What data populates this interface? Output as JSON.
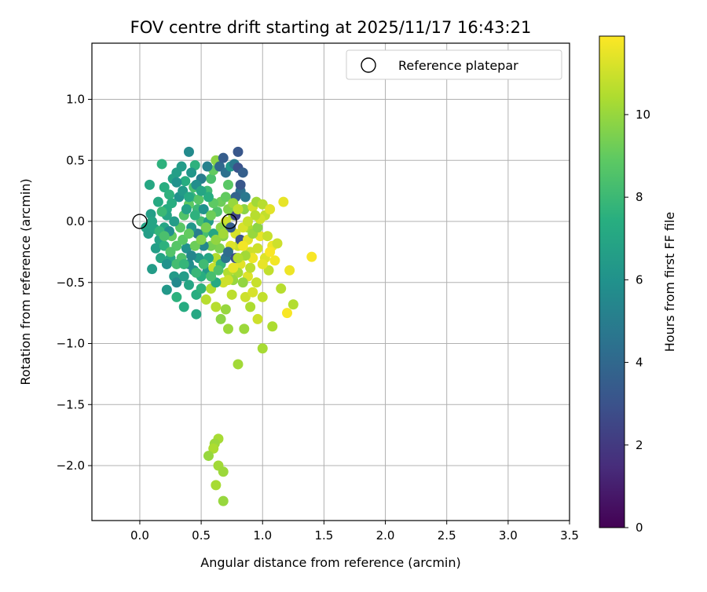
{
  "chart_data": {
    "type": "scatter",
    "title": "FOV centre drift starting at 2025/11/17 16:43:21",
    "xlabel": "Angular distance from reference (arcmin)",
    "ylabel": "Rotation from reference (arcmin)",
    "xlim": [
      -0.39,
      3.5
    ],
    "ylim": [
      -2.45,
      1.46
    ],
    "xticks": [
      0.0,
      0.5,
      1.0,
      1.5,
      2.0,
      2.5,
      3.0,
      3.5
    ],
    "xtick_labels": [
      "0.0",
      "0.5",
      "1.0",
      "1.5",
      "2.0",
      "2.5",
      "3.0",
      "3.5"
    ],
    "yticks": [
      -2.0,
      -1.5,
      -1.0,
      -0.5,
      0.0,
      0.5,
      1.0
    ],
    "ytick_labels": [
      "−2.0",
      "−1.5",
      "−1.0",
      "−0.5",
      "0.0",
      "0.5",
      "1.0"
    ],
    "grid": true,
    "legend": {
      "position": "upper-right",
      "entries": [
        "Reference platepar"
      ]
    },
    "reference_points": [
      [
        0.0,
        0.0
      ],
      [
        0.73,
        0.0
      ]
    ],
    "colorbar": {
      "label": "Hours from first FF file",
      "range": [
        0,
        11.9
      ],
      "ticks": [
        0,
        2,
        4,
        6,
        8,
        10
      ],
      "tick_labels": [
        "0",
        "2",
        "4",
        "6",
        "8",
        "10"
      ],
      "colormap": "viridis"
    },
    "points": [
      [
        0.05,
        -0.05,
        6.8
      ],
      [
        0.07,
        -0.1,
        6.6
      ],
      [
        0.09,
        0.06,
        6.6
      ],
      [
        0.08,
        0.3,
        7.1
      ],
      [
        0.12,
        -0.06,
        6.9
      ],
      [
        0.15,
        0.16,
        7.2
      ],
      [
        0.1,
        0.0,
        6.9
      ],
      [
        0.13,
        -0.22,
        6.6
      ],
      [
        0.18,
        0.47,
        7.6
      ],
      [
        0.2,
        0.28,
        7.4
      ],
      [
        0.22,
        -0.56,
        6.3
      ],
      [
        0.25,
        -0.3,
        7.0
      ],
      [
        0.28,
        -0.45,
        6.4
      ],
      [
        0.3,
        -0.62,
        7.6
      ],
      [
        0.36,
        -0.7,
        7.3
      ],
      [
        0.4,
        -0.52,
        7.0
      ],
      [
        0.46,
        -0.76,
        7.1
      ],
      [
        0.46,
        -0.6,
        7.4
      ],
      [
        0.54,
        -0.64,
        10.6
      ],
      [
        0.5,
        -0.55,
        7.6
      ],
      [
        0.1,
        -0.39,
        6.5
      ],
      [
        0.16,
        -0.15,
        6.8
      ],
      [
        0.2,
        -0.05,
        7.0
      ],
      [
        0.22,
        0.1,
        7.3
      ],
      [
        0.24,
        0.22,
        7.6
      ],
      [
        0.27,
        0.35,
        6.8
      ],
      [
        0.3,
        0.4,
        6.6
      ],
      [
        0.34,
        0.45,
        6.5
      ],
      [
        0.37,
        0.33,
        7.4
      ],
      [
        0.4,
        0.57,
        5.6
      ],
      [
        0.45,
        0.46,
        7.6
      ],
      [
        0.42,
        0.2,
        7.8
      ],
      [
        0.47,
        0.1,
        8.0
      ],
      [
        0.5,
        0.0,
        8.2
      ],
      [
        0.52,
        -0.1,
        8.3
      ],
      [
        0.55,
        0.25,
        8.1
      ],
      [
        0.58,
        0.35,
        8.4
      ],
      [
        0.6,
        0.42,
        9.0
      ],
      [
        0.62,
        0.5,
        9.8
      ],
      [
        0.65,
        0.45,
        4.0
      ],
      [
        0.68,
        0.52,
        3.5
      ],
      [
        0.7,
        0.4,
        4.4
      ],
      [
        0.72,
        0.3,
        8.8
      ],
      [
        0.74,
        0.45,
        6.2
      ],
      [
        0.77,
        0.47,
        4.8
      ],
      [
        0.8,
        0.44,
        3.0
      ],
      [
        0.8,
        0.57,
        3.2
      ],
      [
        0.82,
        0.25,
        4.4
      ],
      [
        0.78,
        0.2,
        3.8
      ],
      [
        0.76,
        0.05,
        10.5
      ],
      [
        0.78,
        -0.1,
        11.2
      ],
      [
        0.8,
        -0.2,
        10.9
      ],
      [
        0.82,
        -0.35,
        11.4
      ],
      [
        0.85,
        0.1,
        9.8
      ],
      [
        0.88,
        -0.05,
        10.4
      ],
      [
        0.9,
        -0.25,
        11.0
      ],
      [
        0.92,
        0.12,
        11.1
      ],
      [
        0.95,
        0.16,
        10.2
      ],
      [
        0.98,
        -0.12,
        11.5
      ],
      [
        1.0,
        0.14,
        10.6
      ],
      [
        1.02,
        -0.3,
        11.3
      ],
      [
        1.05,
        -0.4,
        10.8
      ],
      [
        1.08,
        -0.2,
        11.6
      ],
      [
        1.1,
        -0.32,
        11.7
      ],
      [
        1.12,
        -0.18,
        11.0
      ],
      [
        1.15,
        -0.55,
        10.6
      ],
      [
        1.17,
        0.16,
        11.5
      ],
      [
        1.2,
        -0.75,
        11.8
      ],
      [
        1.22,
        -0.4,
        11.6
      ],
      [
        1.25,
        -0.68,
        10.5
      ],
      [
        1.4,
        -0.29,
        11.8
      ],
      [
        1.08,
        -0.86,
        10.4
      ],
      [
        1.0,
        -1.04,
        10.3
      ],
      [
        0.8,
        -1.17,
        10.2
      ],
      [
        0.96,
        -0.8,
        11.0
      ],
      [
        0.9,
        -0.7,
        10.4
      ],
      [
        0.85,
        -0.88,
        10.1
      ],
      [
        0.75,
        -0.6,
        10.7
      ],
      [
        0.7,
        -0.72,
        10.0
      ],
      [
        0.66,
        -0.8,
        9.8
      ],
      [
        0.62,
        -0.7,
        10.6
      ],
      [
        0.58,
        -0.55,
        10.5
      ],
      [
        0.72,
        -0.88,
        10.1
      ],
      [
        0.86,
        -0.62,
        11.0
      ],
      [
        0.92,
        -0.58,
        11.2
      ],
      [
        1.0,
        -0.62,
        10.8
      ],
      [
        0.95,
        -0.5,
        10.9
      ],
      [
        0.88,
        -0.45,
        11.3
      ],
      [
        0.84,
        -0.5,
        9.9
      ],
      [
        0.8,
        -0.42,
        10.3
      ],
      [
        0.64,
        -1.78,
        10.3
      ],
      [
        0.61,
        -1.82,
        10.1
      ],
      [
        0.6,
        -1.86,
        10.4
      ],
      [
        0.56,
        -1.92,
        10.0
      ],
      [
        0.64,
        -2.0,
        10.2
      ],
      [
        0.68,
        -2.05,
        10.1
      ],
      [
        0.62,
        -2.16,
        10.3
      ],
      [
        0.68,
        -2.29,
        10.0
      ],
      [
        0.55,
        -0.41,
        6.3
      ],
      [
        0.6,
        -0.38,
        10.9
      ],
      [
        0.62,
        -0.3,
        10.5
      ],
      [
        0.65,
        -0.22,
        9.5
      ],
      [
        0.68,
        -0.12,
        9.7
      ],
      [
        0.7,
        0.0,
        11.0
      ],
      [
        0.74,
        -0.2,
        11.3
      ],
      [
        0.72,
        -0.42,
        10.5
      ],
      [
        0.68,
        -0.5,
        11.0
      ],
      [
        0.76,
        -0.48,
        10.0
      ],
      [
        0.48,
        -0.3,
        6.4
      ],
      [
        0.44,
        -0.4,
        6.1
      ],
      [
        0.4,
        -0.35,
        5.8
      ],
      [
        0.38,
        -0.22,
        6.0
      ],
      [
        0.34,
        -0.3,
        8.5
      ],
      [
        0.3,
        -0.2,
        8.7
      ],
      [
        0.26,
        -0.12,
        9.0
      ],
      [
        0.33,
        -0.05,
        8.8
      ],
      [
        0.36,
        0.05,
        8.6
      ],
      [
        0.4,
        0.14,
        8.9
      ],
      [
        0.44,
        0.28,
        8.3
      ],
      [
        0.48,
        0.18,
        8.7
      ],
      [
        0.52,
        0.1,
        6.0
      ],
      [
        0.56,
        0.0,
        6.5
      ],
      [
        0.6,
        -0.1,
        7.0
      ],
      [
        0.63,
        0.08,
        8.5
      ],
      [
        0.66,
        0.16,
        9.2
      ],
      [
        0.7,
        0.2,
        9.0
      ],
      [
        0.66,
        -0.05,
        9.8
      ],
      [
        0.58,
        -0.2,
        9.4
      ],
      [
        0.52,
        -0.2,
        5.5
      ],
      [
        0.47,
        -0.1,
        5.0
      ],
      [
        0.42,
        -0.05,
        6.2
      ],
      [
        0.38,
        0.1,
        6.8
      ],
      [
        0.32,
        0.2,
        6.0
      ],
      [
        0.28,
        0.0,
        6.5
      ],
      [
        0.24,
        -0.08,
        5.8
      ],
      [
        0.2,
        -0.2,
        7.6
      ],
      [
        0.17,
        -0.3,
        7.0
      ],
      [
        0.22,
        -0.35,
        6.0
      ],
      [
        0.3,
        -0.5,
        5.6
      ],
      [
        0.36,
        -0.45,
        6.5
      ],
      [
        0.42,
        -0.28,
        5.4
      ],
      [
        0.5,
        -0.45,
        7.4
      ],
      [
        0.56,
        -0.3,
        7.0
      ],
      [
        0.62,
        -0.5,
        7.2
      ],
      [
        0.66,
        -0.35,
        7.8
      ],
      [
        0.7,
        -0.3,
        4.6
      ],
      [
        0.74,
        -0.05,
        3.5
      ],
      [
        0.78,
        0.05,
        2.5
      ],
      [
        0.82,
        -0.15,
        3.0
      ],
      [
        0.72,
        -0.25,
        4.2
      ],
      [
        0.78,
        -0.3,
        2.8
      ],
      [
        0.82,
        0.3,
        3.2
      ],
      [
        0.86,
        0.2,
        4.8
      ],
      [
        0.84,
        0.4,
        3.6
      ],
      [
        0.55,
        0.45,
        5.2
      ],
      [
        0.5,
        0.35,
        5.0
      ],
      [
        0.46,
        0.3,
        5.8
      ],
      [
        0.42,
        0.4,
        6.2
      ],
      [
        0.35,
        0.25,
        6.4
      ],
      [
        0.3,
        0.32,
        6.0
      ],
      [
        0.26,
        0.15,
        7.4
      ],
      [
        0.22,
        0.05,
        7.0
      ],
      [
        0.18,
        0.08,
        8.0
      ],
      [
        0.16,
        -0.08,
        7.8
      ],
      [
        0.2,
        -0.12,
        8.4
      ],
      [
        0.25,
        -0.25,
        8.6
      ],
      [
        0.3,
        -0.35,
        8.2
      ],
      [
        0.35,
        -0.15,
        8.8
      ],
      [
        0.4,
        -0.1,
        9.0
      ],
      [
        0.45,
        -0.2,
        9.2
      ],
      [
        0.5,
        -0.15,
        9.6
      ],
      [
        0.54,
        -0.05,
        9.4
      ],
      [
        0.58,
        0.05,
        9.2
      ],
      [
        0.6,
        0.15,
        8.9
      ],
      [
        0.56,
        0.2,
        7.4
      ],
      [
        0.5,
        0.25,
        7.0
      ],
      [
        0.45,
        0.05,
        7.6
      ],
      [
        0.4,
        0.2,
        7.2
      ],
      [
        0.36,
        -0.35,
        7.8
      ],
      [
        0.46,
        -0.42,
        7.9
      ],
      [
        0.52,
        -0.35,
        8.1
      ],
      [
        0.58,
        -0.45,
        8.3
      ],
      [
        0.64,
        -0.4,
        8.5
      ],
      [
        0.62,
        -0.15,
        9.9
      ],
      [
        0.68,
        -0.1,
        10.2
      ],
      [
        0.72,
        0.1,
        9.6
      ],
      [
        0.76,
        0.15,
        10.0
      ],
      [
        0.8,
        0.1,
        10.8
      ],
      [
        0.84,
        -0.05,
        11.2
      ],
      [
        0.88,
        -0.15,
        11.4
      ],
      [
        0.92,
        -0.3,
        11.6
      ],
      [
        0.96,
        -0.22,
        11.0
      ],
      [
        1.0,
        -0.35,
        11.5
      ],
      [
        1.04,
        -0.12,
        10.9
      ],
      [
        1.06,
        -0.25,
        11.8
      ],
      [
        0.9,
        -0.38,
        10.7
      ],
      [
        0.86,
        -0.28,
        10.2
      ],
      [
        0.8,
        -0.3,
        10.5
      ],
      [
        0.92,
        -0.1,
        10.0
      ],
      [
        0.96,
        -0.05,
        9.8
      ],
      [
        1.02,
        0.05,
        10.8
      ],
      [
        1.06,
        0.1,
        11.4
      ],
      [
        0.98,
        0.02,
        11.1
      ],
      [
        0.94,
        0.05,
        10.6
      ],
      [
        0.88,
        0.0,
        10.9
      ],
      [
        0.76,
        -0.38,
        11.5
      ],
      [
        0.84,
        -0.2,
        11.7
      ],
      [
        0.72,
        -0.48,
        11.0
      ]
    ]
  }
}
